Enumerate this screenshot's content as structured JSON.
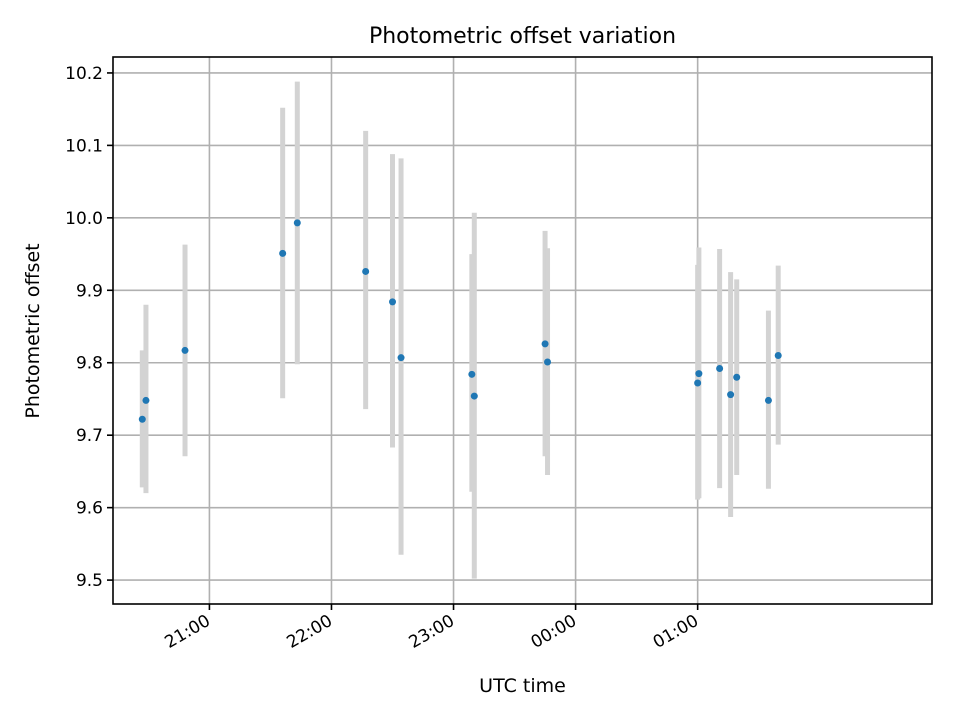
{
  "chart_data": {
    "type": "scatter",
    "title": "Photometric offset variation",
    "xlabel": "UTC time",
    "ylabel": "Photometric offset",
    "grid": true,
    "xlim_hours": [
      20.21,
      26.92
    ],
    "ylim": [
      9.467,
      10.222
    ],
    "x_ticks": [
      {
        "value": 21,
        "label": "21:00"
      },
      {
        "value": 22,
        "label": "22:00"
      },
      {
        "value": 23,
        "label": "23:00"
      },
      {
        "value": 24,
        "label": "00:00"
      },
      {
        "value": 25,
        "label": "01:00"
      }
    ],
    "y_ticks": [
      {
        "value": 9.5,
        "label": "9.5"
      },
      {
        "value": 9.6,
        "label": "9.6"
      },
      {
        "value": 9.7,
        "label": "9.7"
      },
      {
        "value": 9.8,
        "label": "9.8"
      },
      {
        "value": 9.9,
        "label": "9.9"
      },
      {
        "value": 10.0,
        "label": "10.0"
      },
      {
        "value": 10.1,
        "label": "10.1"
      },
      {
        "value": 10.2,
        "label": "10.2"
      }
    ],
    "point_color": "#1f77b4",
    "errorbar_color": "#d3d3d3",
    "points": [
      {
        "x": 20.45,
        "y": 9.722,
        "ylow": 9.628,
        "yhigh": 9.817
      },
      {
        "x": 20.48,
        "y": 9.748,
        "ylow": 9.62,
        "yhigh": 9.88
      },
      {
        "x": 20.8,
        "y": 9.817,
        "ylow": 9.671,
        "yhigh": 9.963
      },
      {
        "x": 21.6,
        "y": 9.951,
        "ylow": 9.751,
        "yhigh": 10.152
      },
      {
        "x": 21.72,
        "y": 9.993,
        "ylow": 9.798,
        "yhigh": 10.188
      },
      {
        "x": 22.28,
        "y": 9.926,
        "ylow": 9.736,
        "yhigh": 10.12
      },
      {
        "x": 22.5,
        "y": 9.884,
        "ylow": 9.683,
        "yhigh": 10.088
      },
      {
        "x": 22.57,
        "y": 9.807,
        "ylow": 9.535,
        "yhigh": 10.082
      },
      {
        "x": 23.15,
        "y": 9.784,
        "ylow": 9.622,
        "yhigh": 9.95
      },
      {
        "x": 23.17,
        "y": 9.754,
        "ylow": 9.502,
        "yhigh": 10.007
      },
      {
        "x": 23.75,
        "y": 9.826,
        "ylow": 9.671,
        "yhigh": 9.982
      },
      {
        "x": 23.77,
        "y": 9.801,
        "ylow": 9.645,
        "yhigh": 9.958
      },
      {
        "x": 25.0,
        "y": 9.772,
        "ylow": 9.611,
        "yhigh": 9.935
      },
      {
        "x": 25.01,
        "y": 9.785,
        "ylow": 9.613,
        "yhigh": 9.959
      },
      {
        "x": 25.18,
        "y": 9.792,
        "ylow": 9.627,
        "yhigh": 9.957
      },
      {
        "x": 25.27,
        "y": 9.756,
        "ylow": 9.587,
        "yhigh": 9.925
      },
      {
        "x": 25.32,
        "y": 9.78,
        "ylow": 9.645,
        "yhigh": 9.915
      },
      {
        "x": 25.58,
        "y": 9.748,
        "ylow": 9.626,
        "yhigh": 9.872
      },
      {
        "x": 25.66,
        "y": 9.81,
        "ylow": 9.687,
        "yhigh": 9.934
      }
    ]
  }
}
